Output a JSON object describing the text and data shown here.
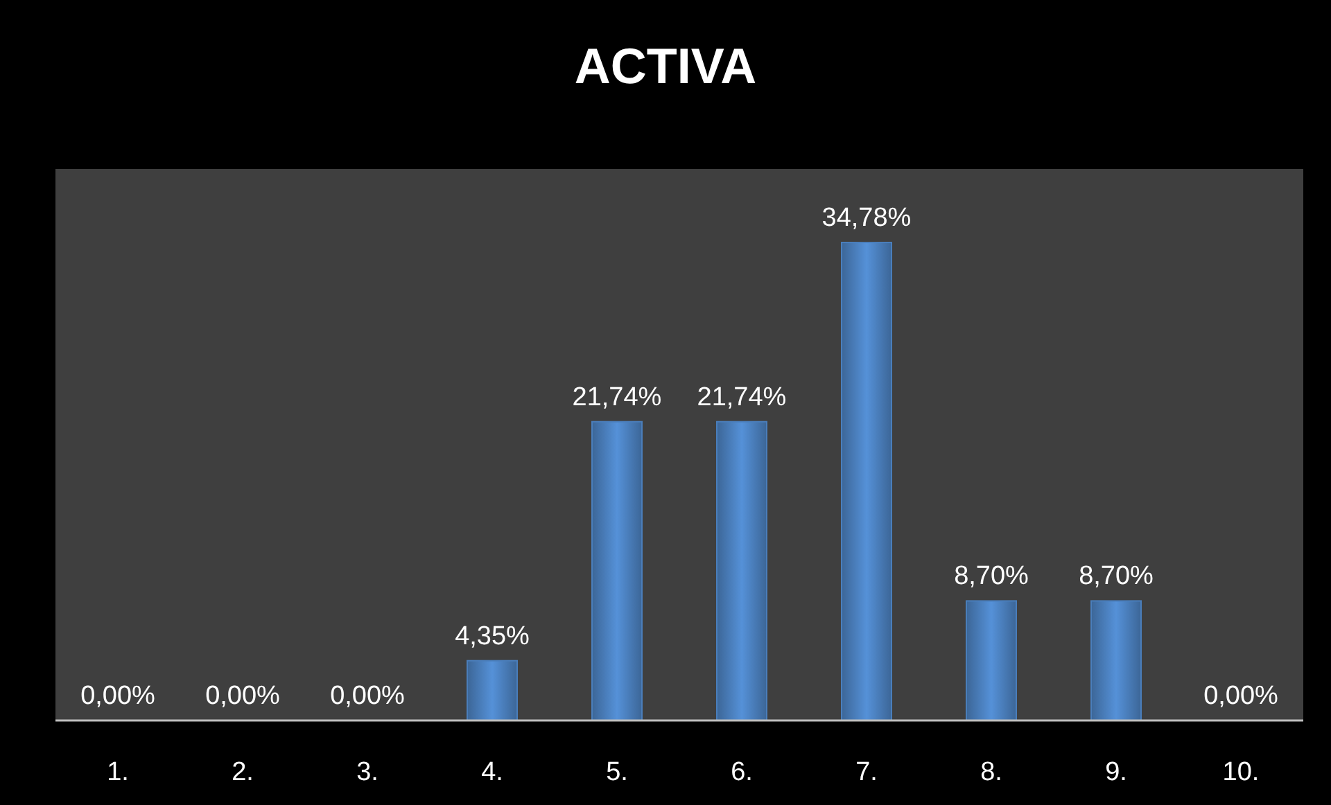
{
  "chart_data": {
    "type": "bar",
    "title": "ACTIVA",
    "categories": [
      "1.",
      "2.",
      "3.",
      "4.",
      "5.",
      "6.",
      "7.",
      "8.",
      "9.",
      "10."
    ],
    "values": [
      0,
      0,
      0,
      4.35,
      21.74,
      21.74,
      34.78,
      8.7,
      8.7,
      0
    ],
    "value_labels": [
      "0,00%",
      "0,00%",
      "0,00%",
      "4,35%",
      "21,74%",
      "21,74%",
      "34,78%",
      "8,70%",
      "8,70%",
      "0,00%"
    ],
    "color": "#4a7ebb",
    "grid": false
  }
}
